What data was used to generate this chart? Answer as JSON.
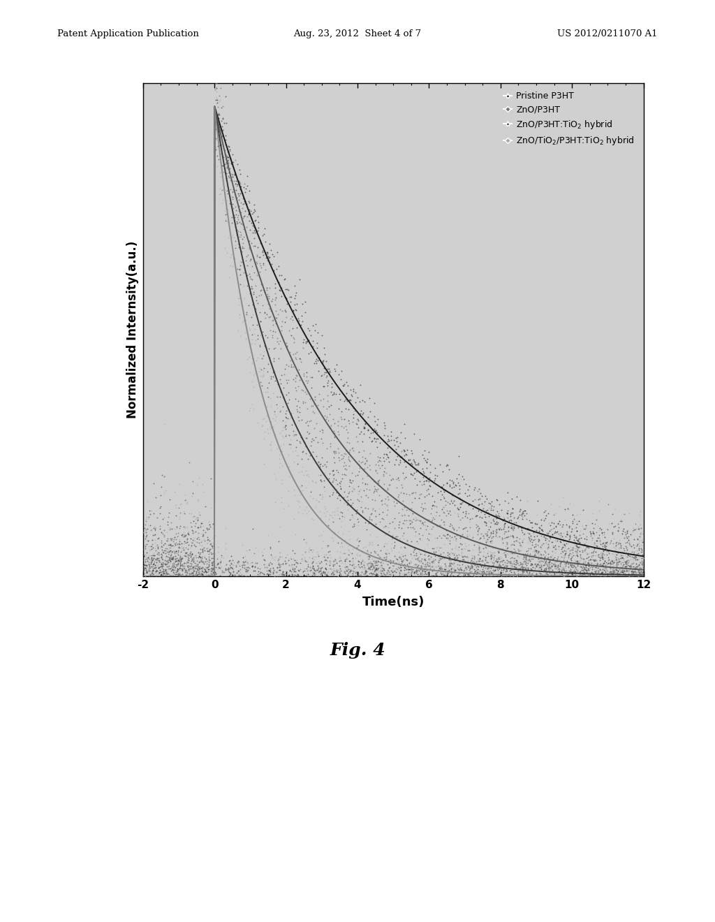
{
  "header_left": "Patent Application Publication",
  "header_center": "Aug. 23, 2012  Sheet 4 of 7",
  "header_right": "US 2012/0211070 A1",
  "fig_label": "Fig. 4",
  "xlabel": "Time(ns)",
  "ylabel": "Normalized Internsity(a.u.)",
  "xlim": [
    -2,
    12
  ],
  "ylim": [
    0.0,
    1.05
  ],
  "xticks": [
    -2,
    0,
    2,
    4,
    6,
    8,
    10,
    12
  ],
  "legend_entries": [
    "Pristine P3HT",
    "ZnO/P3HT",
    "ZnO/P3HT:TiO$_2$ hybrid",
    "ZnO/TiO$_2$/P3HT:TiO$_2$ hybrid"
  ],
  "decay_tau": [
    3.8,
    2.8,
    2.0,
    1.4
  ],
  "noise_level": [
    0.03,
    0.04,
    0.05,
    0.06
  ],
  "outer_bg_color": "#c8c8c8",
  "plot_bg_color": "#d0d0d0",
  "header_fontsize": 9.5,
  "axis_label_fontsize": 13,
  "tick_fontsize": 11,
  "legend_fontsize": 9,
  "fig_label_fontsize": 18,
  "curve_colors": [
    "#111111",
    "#555555",
    "#333333",
    "#888888"
  ],
  "scatter_colors": [
    "#222222",
    "#666666",
    "#444444",
    "#aaaaaa"
  ]
}
